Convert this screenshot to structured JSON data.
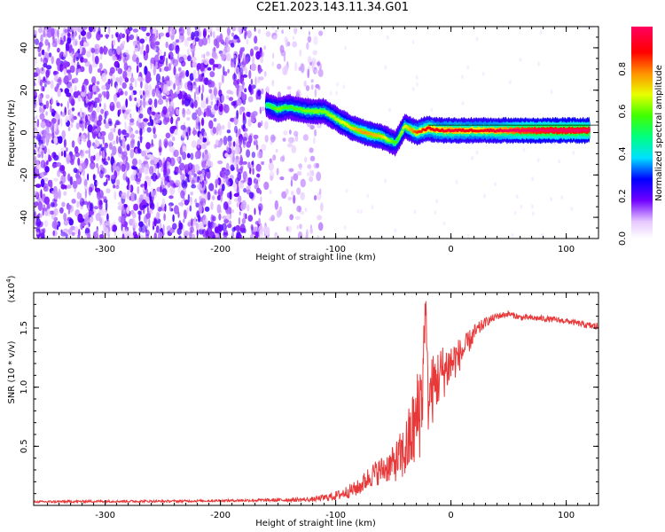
{
  "title": "C2E1.2023.143.11.34.G01",
  "chart_data": [
    {
      "type": "heatmap",
      "xlabel": "Height of straight line (km)",
      "ylabel": "Frequency (Hz)",
      "xlim": [
        -362,
        128
      ],
      "ylim": [
        -50,
        50
      ],
      "x_ticks": [
        -300,
        -200,
        -100,
        0,
        100
      ],
      "x_tick_labels": [
        "-300",
        "-200",
        "-100",
        "0",
        "100"
      ],
      "y_ticks": [
        -40,
        -20,
        0,
        20,
        40
      ],
      "y_tick_labels": [
        "-40",
        "-20",
        "0",
        "20",
        "40"
      ],
      "colorbar": {
        "label": "Normalized spectral amplitude",
        "range": [
          0,
          1
        ],
        "ticks": [
          0.0,
          0.2,
          0.4,
          0.6,
          0.8
        ],
        "tick_labels": [
          "0.0",
          "0.2",
          "0.4",
          "0.6",
          "0.8"
        ],
        "colormap": "rainbow (white-purple-blue-cyan-green-yellow-red-magenta)"
      },
      "signal_track": [
        {
          "x": -160,
          "freq": 13,
          "amp": 0.35
        },
        {
          "x": -150,
          "freq": 11,
          "amp": 0.45
        },
        {
          "x": -140,
          "freq": 12,
          "amp": 0.4
        },
        {
          "x": -125,
          "freq": 10,
          "amp": 0.45
        },
        {
          "x": -110,
          "freq": 10,
          "amp": 0.45
        },
        {
          "x": -95,
          "freq": 5,
          "amp": 0.5
        },
        {
          "x": -85,
          "freq": 2,
          "amp": 0.55
        },
        {
          "x": -75,
          "freq": 0,
          "amp": 0.6
        },
        {
          "x": -60,
          "freq": -2,
          "amp": 0.55
        },
        {
          "x": -48,
          "freq": -5,
          "amp": 0.4
        },
        {
          "x": -40,
          "freq": 3,
          "amp": 0.5
        },
        {
          "x": -30,
          "freq": 0,
          "amp": 0.65
        },
        {
          "x": -20,
          "freq": 2,
          "amp": 0.7
        },
        {
          "x": -10,
          "freq": 1,
          "amp": 0.7
        },
        {
          "x": 0,
          "freq": 1,
          "amp": 0.75
        },
        {
          "x": 20,
          "freq": 1,
          "amp": 0.7
        },
        {
          "x": 40,
          "freq": 1,
          "amp": 0.75
        },
        {
          "x": 60,
          "freq": 1,
          "amp": 0.85
        },
        {
          "x": 80,
          "freq": 1,
          "amp": 0.9
        },
        {
          "x": 100,
          "freq": 1,
          "amp": 0.9
        },
        {
          "x": 120,
          "freq": 1,
          "amp": 0.9
        }
      ]
    },
    {
      "type": "line",
      "xlabel": "Height of straight line (km)",
      "ylabel": "SNR (10 * v/v)",
      "y_exponent_label": "(x10",
      "y_exponent_power": "4",
      "y_exponent_close": ")",
      "xlim": [
        -362,
        128
      ],
      "ylim": [
        0,
        18000
      ],
      "x_ticks": [
        -300,
        -200,
        -100,
        0,
        100
      ],
      "x_tick_labels": [
        "-300",
        "-200",
        "-100",
        "0",
        "100"
      ],
      "y_ticks": [
        5000,
        10000,
        15000
      ],
      "y_tick_labels": [
        "0.5",
        "1.0",
        "1.5"
      ],
      "color": "#e8393a",
      "series": [
        {
          "x": [
            -362,
            -300,
            -250,
            -200,
            -150,
            -120,
            -100,
            -80,
            -70,
            -60,
            -50,
            -40,
            -30,
            -25,
            -22,
            -20,
            -15,
            -10,
            0,
            10,
            20,
            30,
            40,
            50,
            60,
            80,
            100,
            110,
            120,
            128
          ],
          "y": [
            300,
            350,
            350,
            400,
            450,
            500,
            800,
            1500,
            2500,
            3000,
            3500,
            4500,
            7000,
            9500,
            17500,
            9000,
            10000,
            11000,
            12000,
            13000,
            14500,
            15500,
            16000,
            16200,
            15900,
            15800,
            15600,
            15400,
            15200,
            15100
          ],
          "noise": [
            100,
            100,
            100,
            100,
            150,
            200,
            400,
            700,
            1000,
            1200,
            1500,
            2500,
            4000,
            5000,
            1000,
            3000,
            3000,
            2500,
            2000,
            1200,
            800,
            400,
            300,
            250,
            250,
            250,
            250,
            250,
            300,
            400
          ]
        }
      ]
    }
  ]
}
